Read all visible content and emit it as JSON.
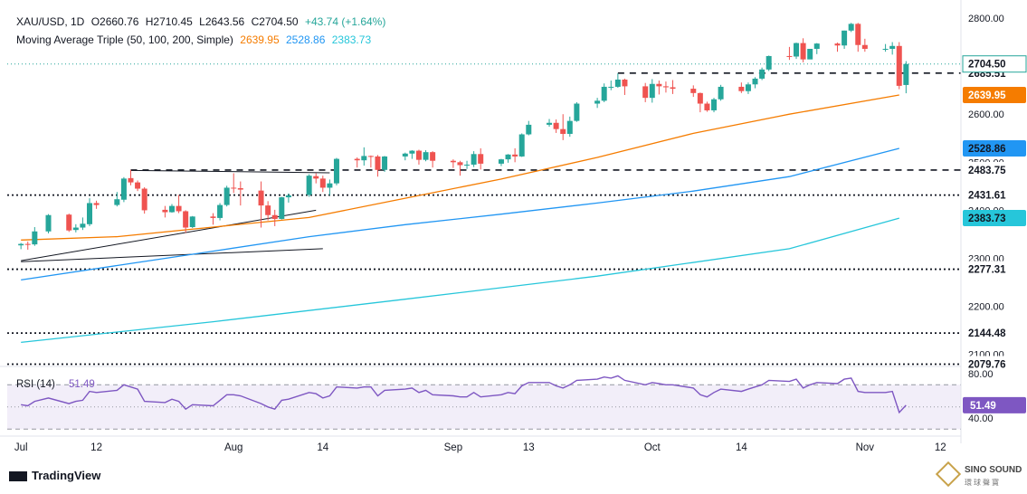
{
  "header": {
    "symbol": "XAU/USD, 1D",
    "open": "O2660.76",
    "high": "H2710.45",
    "low": "L2643.56",
    "close": "C2704.50",
    "change": "+43.74 (+1.64%)",
    "ma_label": "Moving Average Triple (50, 100, 200, Simple)",
    "ma50": "2639.95",
    "ma100": "2528.86",
    "ma200": "2383.73"
  },
  "brand": "TradingView",
  "watermark": {
    "line1": "SINO SOUND",
    "line2": "環球聲寶"
  },
  "rsi": {
    "label": "RSI (14)",
    "value_text": "51.49",
    "value": 51.49,
    "levels": [
      70,
      30
    ],
    "ticks": [
      "80.00",
      "40.00"
    ]
  },
  "colors": {
    "up": "#26a69a",
    "down": "#ef5350",
    "ma50": "#f57c00",
    "ma100": "#2196f3",
    "ma200": "#26c6da",
    "rsi": "#7e57c2",
    "rsi_band": "#ede7f6",
    "text": "#131722"
  },
  "chart_data": {
    "type": "candlestick",
    "ylim": [
      2070,
      2810
    ],
    "y_ticks": [
      "2800.00",
      "2700.00",
      "2600.00",
      "2500.00",
      "2400.00",
      "2300.00",
      "2200.00",
      "2100.00"
    ],
    "x_ticks": [
      "Jul",
      "12",
      "Aug",
      "14",
      "Sep",
      "13",
      "Oct",
      "14",
      "Nov",
      "12"
    ],
    "x_tick_dates": [
      "2024-07-01",
      "2024-07-12",
      "2024-08-01",
      "2024-08-14",
      "2024-09-02",
      "2024-09-13",
      "2024-10-01",
      "2024-10-14",
      "2024-11-01",
      "2024-11-12"
    ],
    "price_label": "2704.50",
    "levels": [
      {
        "label": "2685.51",
        "value": 2685.51,
        "style": "dashed",
        "from": "2024-09-26"
      },
      {
        "label": "2483.75",
        "value": 2483.75,
        "style": "dashed",
        "from": "2024-07-17"
      },
      {
        "label": "2431.61",
        "value": 2431.61,
        "style": "dotted"
      },
      {
        "label": "2277.31",
        "value": 2277.31,
        "style": "dotted"
      },
      {
        "label": "2144.48",
        "value": 2144.48,
        "style": "dotted"
      },
      {
        "label": "2079.76",
        "value": 2079.76,
        "style": "dotted"
      }
    ],
    "trendlines": [
      {
        "start": {
          "date": "2024-07-01",
          "price": 2295
        },
        "end": {
          "date": "2024-08-13",
          "price": 2400
        }
      },
      {
        "start": {
          "date": "2024-07-01",
          "price": 2293
        },
        "end": {
          "date": "2024-08-14",
          "price": 2320
        }
      },
      {
        "start": {
          "date": "2024-07-17",
          "price": 2483
        },
        "end": {
          "date": "2024-08-15",
          "price": 2478
        }
      }
    ],
    "series": [
      {
        "name": "MA 50",
        "value": 2639.95,
        "points": [
          [
            "2024-07-01",
            2338
          ],
          [
            "2024-07-15",
            2345
          ],
          [
            "2024-07-29",
            2365
          ],
          [
            "2024-08-12",
            2385
          ],
          [
            "2024-08-26",
            2425
          ],
          [
            "2024-09-09",
            2465
          ],
          [
            "2024-09-23",
            2510
          ],
          [
            "2024-10-07",
            2560
          ],
          [
            "2024-10-21",
            2600
          ],
          [
            "2024-11-06",
            2639.95
          ]
        ]
      },
      {
        "name": "MA 100",
        "value": 2528.86,
        "points": [
          [
            "2024-07-01",
            2255
          ],
          [
            "2024-07-15",
            2285
          ],
          [
            "2024-07-29",
            2315
          ],
          [
            "2024-08-12",
            2345
          ],
          [
            "2024-08-26",
            2370
          ],
          [
            "2024-09-09",
            2392
          ],
          [
            "2024-09-23",
            2415
          ],
          [
            "2024-10-07",
            2440
          ],
          [
            "2024-10-21",
            2470
          ],
          [
            "2024-11-06",
            2528.86
          ]
        ]
      },
      {
        "name": "MA 200",
        "value": 2383.73,
        "points": [
          [
            "2024-07-01",
            2125
          ],
          [
            "2024-07-29",
            2168
          ],
          [
            "2024-08-26",
            2215
          ],
          [
            "2024-09-23",
            2263
          ],
          [
            "2024-10-21",
            2320
          ],
          [
            "2024-11-06",
            2383.73
          ]
        ]
      }
    ],
    "candles": [
      [
        "2024-07-01",
        2327,
        2332,
        2319,
        2330
      ],
      [
        "2024-07-02",
        2330,
        2335,
        2318,
        2328
      ],
      [
        "2024-07-03",
        2329,
        2365,
        2326,
        2356
      ],
      [
        "2024-07-05",
        2356,
        2392,
        2352,
        2390
      ],
      [
        "2024-07-08",
        2391,
        2393,
        2355,
        2358
      ],
      [
        "2024-07-09",
        2359,
        2371,
        2354,
        2364
      ],
      [
        "2024-07-10",
        2364,
        2385,
        2359,
        2372
      ],
      [
        "2024-07-11",
        2371,
        2425,
        2367,
        2415
      ],
      [
        "2024-07-12",
        2415,
        2420,
        2403,
        2411
      ],
      [
        "2024-07-15",
        2411,
        2438,
        2408,
        2423
      ],
      [
        "2024-07-16",
        2422,
        2469,
        2417,
        2466
      ],
      [
        "2024-07-17",
        2467,
        2484,
        2452,
        2458
      ],
      [
        "2024-07-18",
        2458,
        2462,
        2440,
        2445
      ],
      [
        "2024-07-19",
        2445,
        2448,
        2393,
        2400
      ],
      [
        "2024-07-22",
        2401,
        2409,
        2385,
        2396
      ],
      [
        "2024-07-23",
        2396,
        2413,
        2395,
        2409
      ],
      [
        "2024-07-24",
        2409,
        2432,
        2394,
        2398
      ],
      [
        "2024-07-25",
        2398,
        2400,
        2353,
        2364
      ],
      [
        "2024-07-26",
        2365,
        2388,
        2363,
        2387
      ],
      [
        "2024-07-29",
        2387,
        2394,
        2370,
        2384
      ],
      [
        "2024-07-30",
        2384,
        2415,
        2379,
        2411
      ],
      [
        "2024-07-31",
        2411,
        2451,
        2408,
        2447
      ],
      [
        "2024-08-01",
        2447,
        2477,
        2436,
        2446
      ],
      [
        "2024-08-02",
        2446,
        2460,
        2410,
        2443
      ],
      [
        "2024-08-05",
        2441,
        2460,
        2364,
        2410
      ],
      [
        "2024-08-06",
        2410,
        2419,
        2379,
        2390
      ],
      [
        "2024-08-07",
        2390,
        2401,
        2367,
        2382
      ],
      [
        "2024-08-08",
        2382,
        2428,
        2381,
        2427
      ],
      [
        "2024-08-09",
        2427,
        2435,
        2416,
        2431
      ],
      [
        "2024-08-12",
        2432,
        2475,
        2428,
        2472
      ],
      [
        "2024-08-13",
        2471,
        2477,
        2456,
        2466
      ],
      [
        "2024-08-14",
        2466,
        2472,
        2438,
        2447
      ],
      [
        "2024-08-15",
        2447,
        2464,
        2431,
        2456
      ],
      [
        "2024-08-16",
        2456,
        2509,
        2452,
        2507
      ],
      [
        "2024-08-19",
        2507,
        2510,
        2489,
        2504
      ],
      [
        "2024-08-20",
        2504,
        2531,
        2493,
        2513
      ],
      [
        "2024-08-21",
        2513,
        2514,
        2489,
        2512
      ],
      [
        "2024-08-22",
        2512,
        2515,
        2470,
        2484
      ],
      [
        "2024-08-23",
        2484,
        2513,
        2480,
        2512
      ],
      [
        "2024-08-26",
        2512,
        2520,
        2504,
        2518
      ],
      [
        "2024-08-27",
        2518,
        2525,
        2507,
        2524
      ],
      [
        "2024-08-28",
        2524,
        2526,
        2495,
        2505
      ],
      [
        "2024-08-29",
        2505,
        2525,
        2502,
        2521
      ],
      [
        "2024-08-30",
        2521,
        2523,
        2489,
        2503
      ],
      [
        "2024-09-02",
        2503,
        2506,
        2488,
        2500
      ],
      [
        "2024-09-03",
        2500,
        2503,
        2472,
        2494
      ],
      [
        "2024-09-04",
        2494,
        2503,
        2486,
        2495
      ],
      [
        "2024-09-05",
        2495,
        2523,
        2490,
        2517
      ],
      [
        "2024-09-06",
        2517,
        2529,
        2485,
        2497
      ],
      [
        "2024-09-09",
        2497,
        2507,
        2492,
        2506
      ],
      [
        "2024-09-10",
        2506,
        2517,
        2499,
        2516
      ],
      [
        "2024-09-11",
        2516,
        2529,
        2500,
        2512
      ],
      [
        "2024-09-12",
        2512,
        2560,
        2511,
        2558
      ],
      [
        "2024-09-13",
        2558,
        2586,
        2556,
        2578
      ],
      [
        "2024-09-16",
        2578,
        2590,
        2574,
        2582
      ],
      [
        "2024-09-17",
        2582,
        2589,
        2561,
        2569
      ],
      [
        "2024-09-18",
        2569,
        2600,
        2546,
        2559
      ],
      [
        "2024-09-19",
        2559,
        2595,
        2553,
        2586
      ],
      [
        "2024-09-20",
        2586,
        2625,
        2584,
        2622
      ],
      [
        "2024-09-23",
        2622,
        2634,
        2613,
        2628
      ],
      [
        "2024-09-24",
        2628,
        2664,
        2625,
        2657
      ],
      [
        "2024-09-25",
        2657,
        2670,
        2650,
        2657
      ],
      [
        "2024-09-26",
        2657,
        2685,
        2655,
        2672
      ],
      [
        "2024-09-27",
        2672,
        2674,
        2640,
        2658
      ],
      [
        "2024-09-30",
        2658,
        2665,
        2625,
        2634
      ],
      [
        "2024-10-01",
        2634,
        2673,
        2624,
        2663
      ],
      [
        "2024-10-02",
        2663,
        2670,
        2641,
        2658
      ],
      [
        "2024-10-03",
        2658,
        2668,
        2645,
        2656
      ],
      [
        "2024-10-04",
        2656,
        2671,
        2642,
        2653
      ],
      [
        "2024-10-07",
        2653,
        2660,
        2636,
        2644
      ],
      [
        "2024-10-08",
        2644,
        2645,
        2604,
        2622
      ],
      [
        "2024-10-09",
        2622,
        2626,
        2605,
        2608
      ],
      [
        "2024-10-10",
        2608,
        2634,
        2604,
        2631
      ],
      [
        "2024-10-11",
        2631,
        2661,
        2628,
        2657
      ],
      [
        "2024-10-14",
        2657,
        2666,
        2644,
        2648
      ],
      [
        "2024-10-15",
        2648,
        2666,
        2642,
        2662
      ],
      [
        "2024-10-16",
        2662,
        2677,
        2654,
        2674
      ],
      [
        "2024-10-17",
        2674,
        2697,
        2671,
        2693
      ],
      [
        "2024-10-18",
        2693,
        2722,
        2690,
        2721
      ],
      [
        "2024-10-21",
        2721,
        2740,
        2713,
        2720
      ],
      [
        "2024-10-22",
        2720,
        2749,
        2715,
        2748
      ],
      [
        "2024-10-23",
        2748,
        2758,
        2708,
        2714
      ],
      [
        "2024-10-24",
        2714,
        2736,
        2715,
        2736
      ],
      [
        "2024-10-25",
        2736,
        2748,
        2725,
        2747
      ],
      [
        "2024-10-28",
        2747,
        2749,
        2730,
        2743
      ],
      [
        "2024-10-29",
        2743,
        2774,
        2736,
        2774
      ],
      [
        "2024-10-30",
        2774,
        2790,
        2771,
        2788
      ],
      [
        "2024-10-31",
        2788,
        2790,
        2730,
        2744
      ],
      [
        "2024-11-01",
        2744,
        2757,
        2730,
        2736
      ],
      [
        "2024-11-04",
        2736,
        2746,
        2730,
        2736
      ],
      [
        "2024-11-05",
        2736,
        2750,
        2724,
        2742
      ],
      [
        "2024-11-06",
        2742,
        2750,
        2652,
        2659
      ],
      [
        "2024-11-07",
        2660.76,
        2710.45,
        2643.56,
        2704.5
      ]
    ],
    "rsi_series": [
      [
        "2024-07-01",
        52
      ],
      [
        "2024-07-02",
        51
      ],
      [
        "2024-07-03",
        55
      ],
      [
        "2024-07-05",
        58
      ],
      [
        "2024-07-08",
        53
      ],
      [
        "2024-07-09",
        55
      ],
      [
        "2024-07-10",
        56
      ],
      [
        "2024-07-11",
        64
      ],
      [
        "2024-07-12",
        63
      ],
      [
        "2024-07-15",
        65
      ],
      [
        "2024-07-16",
        70
      ],
      [
        "2024-07-17",
        68
      ],
      [
        "2024-07-18",
        66
      ],
      [
        "2024-07-19",
        55
      ],
      [
        "2024-07-22",
        54
      ],
      [
        "2024-07-23",
        57
      ],
      [
        "2024-07-24",
        55
      ],
      [
        "2024-07-25",
        48
      ],
      [
        "2024-07-26",
        52
      ],
      [
        "2024-07-29",
        51
      ],
      [
        "2024-07-30",
        56
      ],
      [
        "2024-07-31",
        61
      ],
      [
        "2024-08-01",
        61
      ],
      [
        "2024-08-02",
        60
      ],
      [
        "2024-08-05",
        53
      ],
      [
        "2024-08-06",
        50
      ],
      [
        "2024-08-07",
        48
      ],
      [
        "2024-08-08",
        56
      ],
      [
        "2024-08-09",
        57
      ],
      [
        "2024-08-12",
        63
      ],
      [
        "2024-08-13",
        62
      ],
      [
        "2024-08-14",
        58
      ],
      [
        "2024-08-15",
        60
      ],
      [
        "2024-08-16",
        68
      ],
      [
        "2024-08-19",
        67
      ],
      [
        "2024-08-20",
        68
      ],
      [
        "2024-08-21",
        68
      ],
      [
        "2024-08-22",
        60
      ],
      [
        "2024-08-23",
        65
      ],
      [
        "2024-08-26",
        66
      ],
      [
        "2024-08-27",
        67
      ],
      [
        "2024-08-28",
        63
      ],
      [
        "2024-08-29",
        65
      ],
      [
        "2024-08-30",
        61
      ],
      [
        "2024-09-02",
        60
      ],
      [
        "2024-09-03",
        59
      ],
      [
        "2024-09-04",
        59
      ],
      [
        "2024-09-05",
        63
      ],
      [
        "2024-09-06",
        59
      ],
      [
        "2024-09-09",
        61
      ],
      [
        "2024-09-10",
        63
      ],
      [
        "2024-09-11",
        62
      ],
      [
        "2024-09-12",
        69
      ],
      [
        "2024-09-13",
        72
      ],
      [
        "2024-09-16",
        72
      ],
      [
        "2024-09-17",
        69
      ],
      [
        "2024-09-18",
        67
      ],
      [
        "2024-09-19",
        70
      ],
      [
        "2024-09-20",
        74
      ],
      [
        "2024-09-23",
        75
      ],
      [
        "2024-09-24",
        77
      ],
      [
        "2024-09-25",
        76
      ],
      [
        "2024-09-26",
        78
      ],
      [
        "2024-09-27",
        74
      ],
      [
        "2024-09-30",
        70
      ],
      [
        "2024-10-01",
        72
      ],
      [
        "2024-10-02",
        71
      ],
      [
        "2024-10-03",
        70
      ],
      [
        "2024-10-04",
        70
      ],
      [
        "2024-10-07",
        67
      ],
      [
        "2024-10-08",
        61
      ],
      [
        "2024-10-09",
        59
      ],
      [
        "2024-10-10",
        63
      ],
      [
        "2024-10-11",
        66
      ],
      [
        "2024-10-14",
        64
      ],
      [
        "2024-10-15",
        66
      ],
      [
        "2024-10-16",
        68
      ],
      [
        "2024-10-17",
        70
      ],
      [
        "2024-10-18",
        74
      ],
      [
        "2024-10-21",
        73
      ],
      [
        "2024-10-22",
        75
      ],
      [
        "2024-10-23",
        67
      ],
      [
        "2024-10-24",
        70
      ],
      [
        "2024-10-25",
        72
      ],
      [
        "2024-10-28",
        71
      ],
      [
        "2024-10-29",
        75
      ],
      [
        "2024-10-30",
        76
      ],
      [
        "2024-10-31",
        64
      ],
      [
        "2024-11-01",
        63
      ],
      [
        "2024-11-04",
        63
      ],
      [
        "2024-11-05",
        64
      ],
      [
        "2024-11-06",
        45
      ],
      [
        "2024-11-07",
        51.49
      ]
    ]
  }
}
